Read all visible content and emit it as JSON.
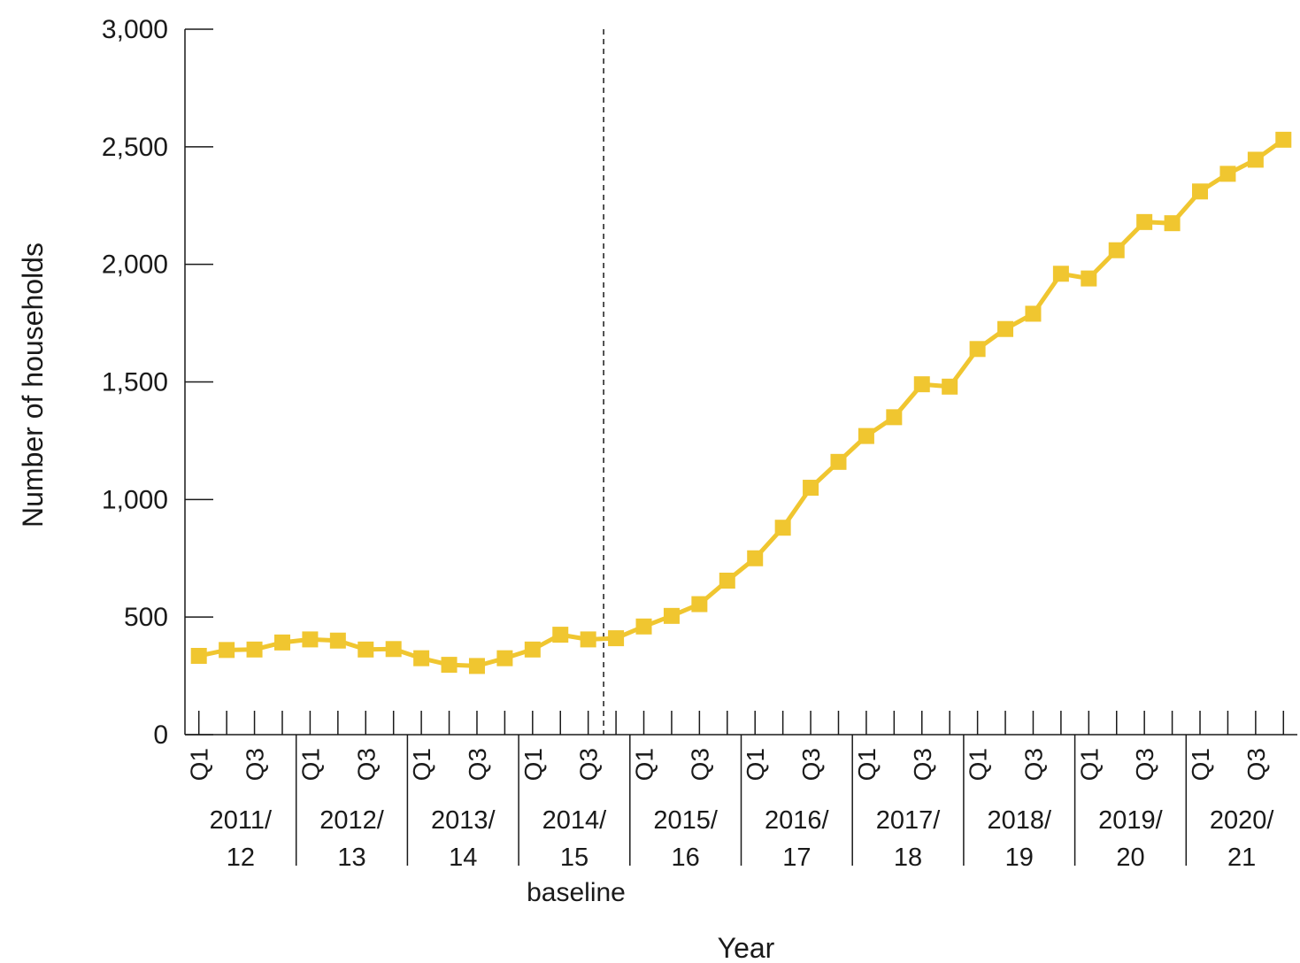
{
  "chart_data": {
    "type": "line",
    "xlabel": "Year",
    "ylabel": "Number of households",
    "ylim": [
      0,
      3000
    ],
    "yticks": [
      "0",
      "500",
      "1,000",
      "1,500",
      "2,000",
      "2,500",
      "3,000"
    ],
    "ytick_values": [
      0,
      500,
      1000,
      1500,
      2000,
      2500,
      3000
    ],
    "years": [
      {
        "line1": "2011/",
        "line2": "12"
      },
      {
        "line1": "2012/",
        "line2": "13"
      },
      {
        "line1": "2013/",
        "line2": "14"
      },
      {
        "line1": "2014/",
        "line2": "15"
      },
      {
        "line1": "2015/",
        "line2": "16"
      },
      {
        "line1": "2016/",
        "line2": "17"
      },
      {
        "line1": "2017/",
        "line2": "18"
      },
      {
        "line1": "2018/",
        "line2": "19"
      },
      {
        "line1": "2019/",
        "line2": "20"
      },
      {
        "line1": "2020/",
        "line2": "21"
      }
    ],
    "quarter_labels": [
      "Q1",
      "Q3"
    ],
    "annotation": "baseline",
    "annotation_after_quarter_index": 15,
    "grid": false,
    "color": "#f0c630",
    "series": [
      {
        "values": [
          335,
          360,
          362,
          392,
          405,
          400,
          362,
          364,
          325,
          297,
          292,
          325,
          362,
          425,
          405,
          410,
          460,
          505,
          555,
          655,
          750,
          880,
          1050,
          1160,
          1270,
          1350,
          1490,
          1480,
          1640,
          1725,
          1790,
          1960,
          1940,
          2060,
          2180,
          2175,
          2310,
          2385,
          2445,
          2530
        ]
      }
    ]
  }
}
